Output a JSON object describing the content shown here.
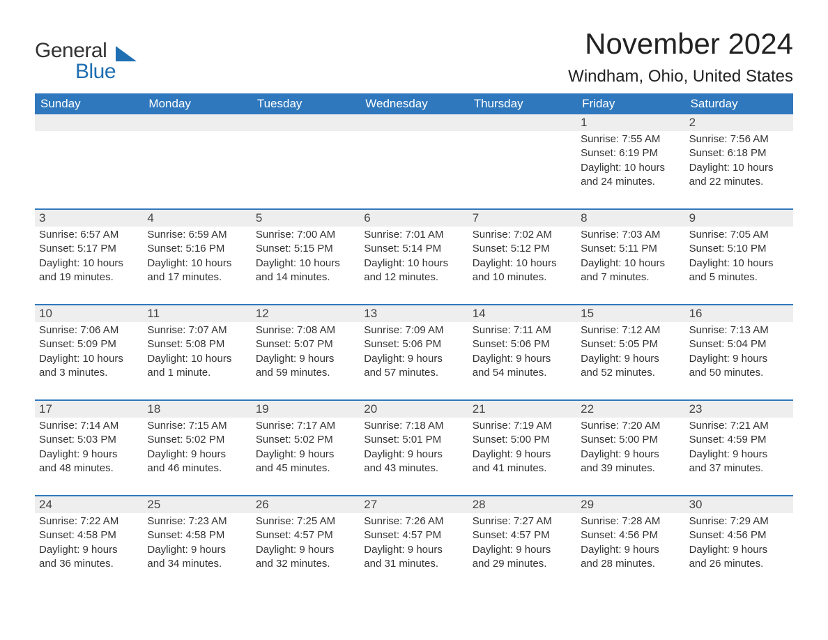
{
  "brand": {
    "word1": "General",
    "word2": "Blue"
  },
  "title": "November 2024",
  "location": "Windham, Ohio, United States",
  "colors": {
    "header_bg": "#2f78bd",
    "header_text": "#ffffff",
    "daynum_bg": "#eeeeee",
    "week_divider": "#2f78bd",
    "body_text": "#333333",
    "brand_blue": "#1f6fb2"
  },
  "day_names": [
    "Sunday",
    "Monday",
    "Tuesday",
    "Wednesday",
    "Thursday",
    "Friday",
    "Saturday"
  ],
  "weeks": [
    [
      {
        "num": "",
        "sunrise": "",
        "sunset": "",
        "daylight1": "",
        "daylight2": ""
      },
      {
        "num": "",
        "sunrise": "",
        "sunset": "",
        "daylight1": "",
        "daylight2": ""
      },
      {
        "num": "",
        "sunrise": "",
        "sunset": "",
        "daylight1": "",
        "daylight2": ""
      },
      {
        "num": "",
        "sunrise": "",
        "sunset": "",
        "daylight1": "",
        "daylight2": ""
      },
      {
        "num": "",
        "sunrise": "",
        "sunset": "",
        "daylight1": "",
        "daylight2": ""
      },
      {
        "num": "1",
        "sunrise": "Sunrise: 7:55 AM",
        "sunset": "Sunset: 6:19 PM",
        "daylight1": "Daylight: 10 hours",
        "daylight2": "and 24 minutes."
      },
      {
        "num": "2",
        "sunrise": "Sunrise: 7:56 AM",
        "sunset": "Sunset: 6:18 PM",
        "daylight1": "Daylight: 10 hours",
        "daylight2": "and 22 minutes."
      }
    ],
    [
      {
        "num": "3",
        "sunrise": "Sunrise: 6:57 AM",
        "sunset": "Sunset: 5:17 PM",
        "daylight1": "Daylight: 10 hours",
        "daylight2": "and 19 minutes."
      },
      {
        "num": "4",
        "sunrise": "Sunrise: 6:59 AM",
        "sunset": "Sunset: 5:16 PM",
        "daylight1": "Daylight: 10 hours",
        "daylight2": "and 17 minutes."
      },
      {
        "num": "5",
        "sunrise": "Sunrise: 7:00 AM",
        "sunset": "Sunset: 5:15 PM",
        "daylight1": "Daylight: 10 hours",
        "daylight2": "and 14 minutes."
      },
      {
        "num": "6",
        "sunrise": "Sunrise: 7:01 AM",
        "sunset": "Sunset: 5:14 PM",
        "daylight1": "Daylight: 10 hours",
        "daylight2": "and 12 minutes."
      },
      {
        "num": "7",
        "sunrise": "Sunrise: 7:02 AM",
        "sunset": "Sunset: 5:12 PM",
        "daylight1": "Daylight: 10 hours",
        "daylight2": "and 10 minutes."
      },
      {
        "num": "8",
        "sunrise": "Sunrise: 7:03 AM",
        "sunset": "Sunset: 5:11 PM",
        "daylight1": "Daylight: 10 hours",
        "daylight2": "and 7 minutes."
      },
      {
        "num": "9",
        "sunrise": "Sunrise: 7:05 AM",
        "sunset": "Sunset: 5:10 PM",
        "daylight1": "Daylight: 10 hours",
        "daylight2": "and 5 minutes."
      }
    ],
    [
      {
        "num": "10",
        "sunrise": "Sunrise: 7:06 AM",
        "sunset": "Sunset: 5:09 PM",
        "daylight1": "Daylight: 10 hours",
        "daylight2": "and 3 minutes."
      },
      {
        "num": "11",
        "sunrise": "Sunrise: 7:07 AM",
        "sunset": "Sunset: 5:08 PM",
        "daylight1": "Daylight: 10 hours",
        "daylight2": "and 1 minute."
      },
      {
        "num": "12",
        "sunrise": "Sunrise: 7:08 AM",
        "sunset": "Sunset: 5:07 PM",
        "daylight1": "Daylight: 9 hours",
        "daylight2": "and 59 minutes."
      },
      {
        "num": "13",
        "sunrise": "Sunrise: 7:09 AM",
        "sunset": "Sunset: 5:06 PM",
        "daylight1": "Daylight: 9 hours",
        "daylight2": "and 57 minutes."
      },
      {
        "num": "14",
        "sunrise": "Sunrise: 7:11 AM",
        "sunset": "Sunset: 5:06 PM",
        "daylight1": "Daylight: 9 hours",
        "daylight2": "and 54 minutes."
      },
      {
        "num": "15",
        "sunrise": "Sunrise: 7:12 AM",
        "sunset": "Sunset: 5:05 PM",
        "daylight1": "Daylight: 9 hours",
        "daylight2": "and 52 minutes."
      },
      {
        "num": "16",
        "sunrise": "Sunrise: 7:13 AM",
        "sunset": "Sunset: 5:04 PM",
        "daylight1": "Daylight: 9 hours",
        "daylight2": "and 50 minutes."
      }
    ],
    [
      {
        "num": "17",
        "sunrise": "Sunrise: 7:14 AM",
        "sunset": "Sunset: 5:03 PM",
        "daylight1": "Daylight: 9 hours",
        "daylight2": "and 48 minutes."
      },
      {
        "num": "18",
        "sunrise": "Sunrise: 7:15 AM",
        "sunset": "Sunset: 5:02 PM",
        "daylight1": "Daylight: 9 hours",
        "daylight2": "and 46 minutes."
      },
      {
        "num": "19",
        "sunrise": "Sunrise: 7:17 AM",
        "sunset": "Sunset: 5:02 PM",
        "daylight1": "Daylight: 9 hours",
        "daylight2": "and 45 minutes."
      },
      {
        "num": "20",
        "sunrise": "Sunrise: 7:18 AM",
        "sunset": "Sunset: 5:01 PM",
        "daylight1": "Daylight: 9 hours",
        "daylight2": "and 43 minutes."
      },
      {
        "num": "21",
        "sunrise": "Sunrise: 7:19 AM",
        "sunset": "Sunset: 5:00 PM",
        "daylight1": "Daylight: 9 hours",
        "daylight2": "and 41 minutes."
      },
      {
        "num": "22",
        "sunrise": "Sunrise: 7:20 AM",
        "sunset": "Sunset: 5:00 PM",
        "daylight1": "Daylight: 9 hours",
        "daylight2": "and 39 minutes."
      },
      {
        "num": "23",
        "sunrise": "Sunrise: 7:21 AM",
        "sunset": "Sunset: 4:59 PM",
        "daylight1": "Daylight: 9 hours",
        "daylight2": "and 37 minutes."
      }
    ],
    [
      {
        "num": "24",
        "sunrise": "Sunrise: 7:22 AM",
        "sunset": "Sunset: 4:58 PM",
        "daylight1": "Daylight: 9 hours",
        "daylight2": "and 36 minutes."
      },
      {
        "num": "25",
        "sunrise": "Sunrise: 7:23 AM",
        "sunset": "Sunset: 4:58 PM",
        "daylight1": "Daylight: 9 hours",
        "daylight2": "and 34 minutes."
      },
      {
        "num": "26",
        "sunrise": "Sunrise: 7:25 AM",
        "sunset": "Sunset: 4:57 PM",
        "daylight1": "Daylight: 9 hours",
        "daylight2": "and 32 minutes."
      },
      {
        "num": "27",
        "sunrise": "Sunrise: 7:26 AM",
        "sunset": "Sunset: 4:57 PM",
        "daylight1": "Daylight: 9 hours",
        "daylight2": "and 31 minutes."
      },
      {
        "num": "28",
        "sunrise": "Sunrise: 7:27 AM",
        "sunset": "Sunset: 4:57 PM",
        "daylight1": "Daylight: 9 hours",
        "daylight2": "and 29 minutes."
      },
      {
        "num": "29",
        "sunrise": "Sunrise: 7:28 AM",
        "sunset": "Sunset: 4:56 PM",
        "daylight1": "Daylight: 9 hours",
        "daylight2": "and 28 minutes."
      },
      {
        "num": "30",
        "sunrise": "Sunrise: 7:29 AM",
        "sunset": "Sunset: 4:56 PM",
        "daylight1": "Daylight: 9 hours",
        "daylight2": "and 26 minutes."
      }
    ]
  ]
}
